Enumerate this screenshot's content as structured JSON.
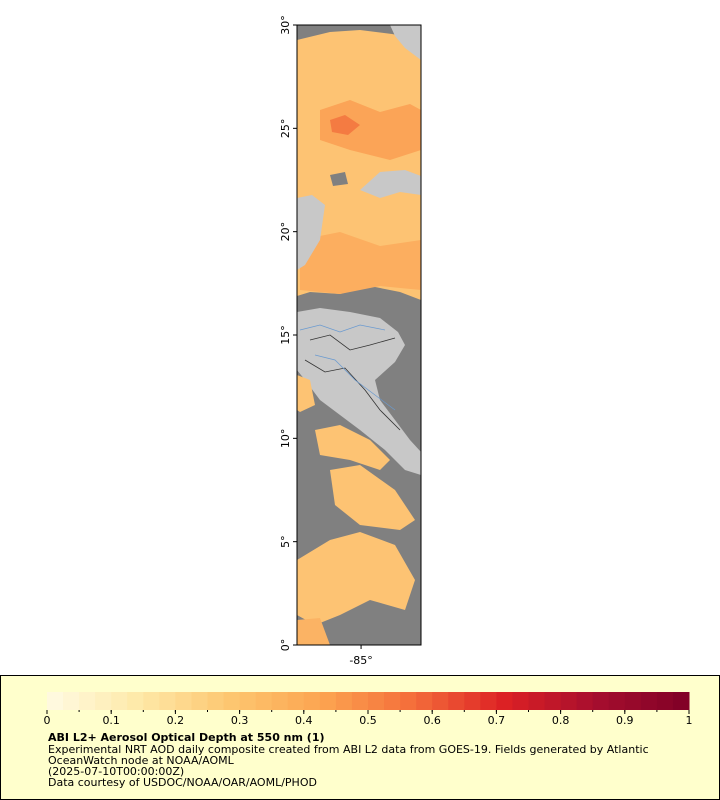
{
  "map": {
    "ylim": [
      0,
      30
    ],
    "yticks": [
      {
        "value": 0,
        "label": "0°"
      },
      {
        "value": 5,
        "label": "5°"
      },
      {
        "value": 10,
        "label": "10°"
      },
      {
        "value": 15,
        "label": "15°"
      },
      {
        "value": 20,
        "label": "20°"
      },
      {
        "value": 25,
        "label": "25°"
      },
      {
        "value": 30,
        "label": "30°"
      }
    ],
    "xlim": [
      -88.1,
      -82.1
    ],
    "xticks": [
      {
        "value": -85,
        "label": "-85°"
      }
    ]
  },
  "colorbar": {
    "lim": [
      0,
      1
    ],
    "ticks": [
      0,
      0.1,
      0.2,
      0.3,
      0.4,
      0.5,
      0.6,
      0.7,
      0.8,
      0.9,
      1
    ],
    "colors": [
      "#fffbe3",
      "#fee9a8",
      "#fdc670",
      "#fca450",
      "#f46d3a",
      "#dc2024",
      "#a50e2e",
      "#800026"
    ]
  },
  "legend": {
    "title": "ABI L2+ Aerosol Optical Depth at 550 nm (1)",
    "lines": [
      "Experimental NRT AOD daily composite created from ABI L2 data from GOES-19. Fields generated by Atlantic",
      "OceanWatch node at NOAA/AOML",
      "(2025-07-10T00:00:00Z)",
      "Data courtesy of USDOC/NOAA/OAR/AOML/PHOD"
    ]
  }
}
